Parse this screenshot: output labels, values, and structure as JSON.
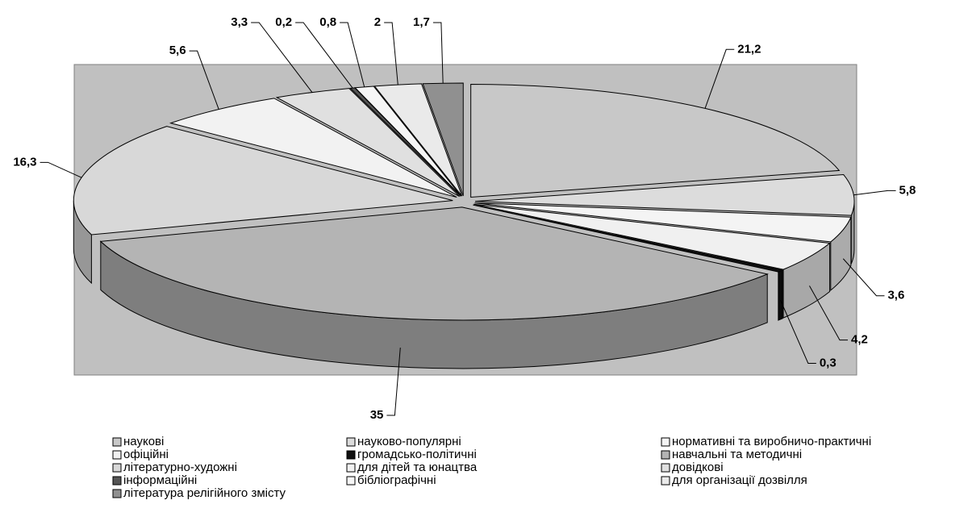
{
  "chart_data": {
    "type": "pie",
    "categories": [
      "наукові",
      "науково-популярні",
      "нормативні та виробничо-практичні",
      "офіційні",
      "громадсько-політичні",
      "навчальні та методичні",
      "літературно-художні",
      "для дітей та юнацтва",
      "довідкові",
      "інформаційні",
      "бібліографічні",
      "для організації дозвілля",
      "література релігійного змісту"
    ],
    "values": [
      21.2,
      5.8,
      3.6,
      4.2,
      0.3,
      35,
      16.3,
      5.6,
      3.3,
      0.2,
      0.8,
      2,
      1.7
    ],
    "value_labels": [
      "21,2",
      "5,8",
      "3,6",
      "4,2",
      "0,3",
      "35",
      "16,3",
      "5,6",
      "3,3",
      "0,2",
      "0,8",
      "2",
      "1,7"
    ],
    "colors": [
      "#c8c8c8",
      "#dcdcdc",
      "#f4f4f4",
      "#f0f0f0",
      "#111111",
      "#b4b4b4",
      "#d8d8d8",
      "#f2f2f2",
      "#e0e0e0",
      "#555555",
      "#f6f6f6",
      "#eaeaea",
      "#909090"
    ]
  }
}
